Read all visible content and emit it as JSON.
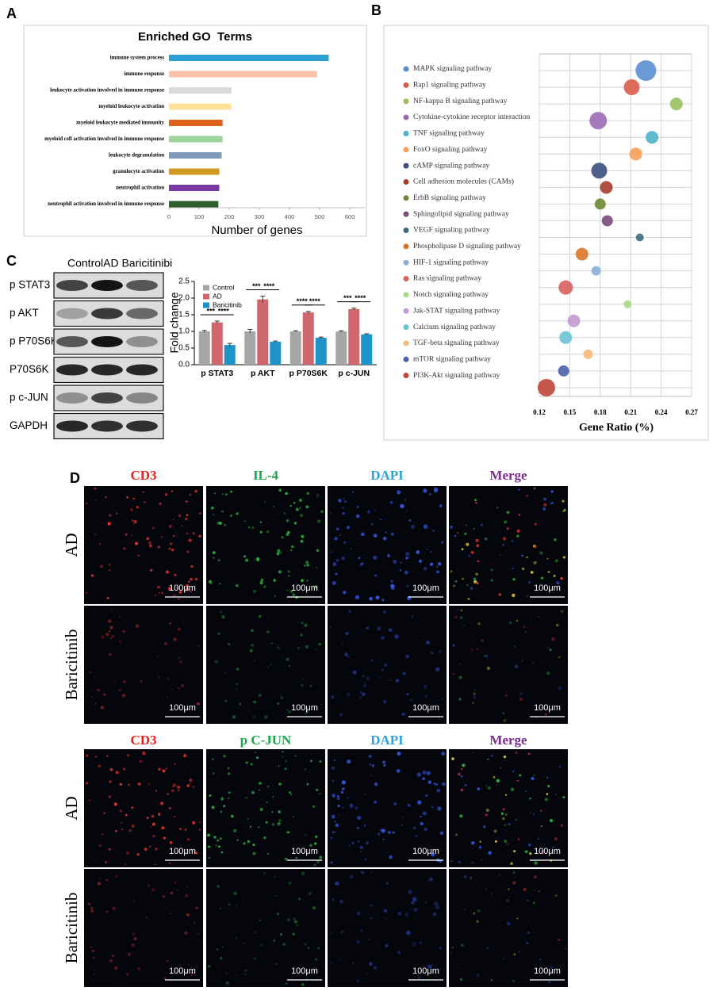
{
  "panel_labels": [
    "A",
    "B",
    "C",
    "D"
  ],
  "chart_data": [
    {
      "type": "hbar",
      "title": "Enriched GO  Terms",
      "x_label": "Number of genes",
      "categories": [
        "immune system process",
        "immune response",
        "leukocyte activation involved in immune response",
        "myeloid leukocyte activation",
        "myeloid leukocyte mediated immunity",
        "myeloid cell activation involved in immune response",
        "leukocyte degranulation",
        "granulocyte activation",
        "neutrophil activation",
        "neutrophil activation involved in immune response"
      ],
      "values": [
        530,
        491,
        207,
        207,
        178,
        178,
        175,
        167,
        167,
        164
      ],
      "colors": [
        "#2e9fd4",
        "#f9c3ab",
        "#d9d9d9",
        "#fde29a",
        "#e0611c",
        "#9dd49b",
        "#7f9bb9",
        "#d19a1f",
        "#7b39a5",
        "#2c5f2d"
      ],
      "xlim": [
        0,
        650
      ],
      "xticks": [
        0,
        100,
        200,
        300,
        400,
        500,
        600
      ]
    },
    {
      "type": "bubble",
      "x_label": "Gene Ratio (%)",
      "categories": [
        "MAPK signaling pathway",
        "Rap1 signaling pathway",
        "NF-kappa B signaling pathway",
        "Cytokine-cytokine receptor interaction",
        "TNF signaling pathway",
        "FoxO signaling pathway",
        "cAMP signaling pathway",
        "Cell adhesion molecules (CAMs)",
        "ErbB signaling pathway",
        "Sphingolipid signaling pathway",
        "VEGF signaling pathway",
        "Phospholipase D signaling pathway",
        "HIF-1 signaling pathway",
        "Ras signaling pathway",
        "Notch signaling pathway",
        "Jak-STAT signaling pathway",
        "Calcium signaling pathway",
        "TGF-beta signaling pathway",
        "mTOR signaling pathway",
        "PI3K-Akt signaling pathway"
      ],
      "values": [
        0.225,
        0.211,
        0.255,
        0.178,
        0.231,
        0.215,
        0.179,
        0.186,
        0.18,
        0.187,
        0.219,
        0.162,
        0.176,
        0.146,
        0.207,
        0.154,
        0.146,
        0.168,
        0.144,
        0.127
      ],
      "sizes": [
        13,
        10,
        8,
        11,
        8,
        8,
        10,
        8,
        7,
        7,
        5,
        8,
        6,
        9,
        5,
        8,
        8,
        6,
        7,
        11
      ],
      "colors": [
        "#5b8fd1",
        "#d95c4a",
        "#98c15e",
        "#9b6bb5",
        "#4eb3c9",
        "#f5a05a",
        "#3b4f7e",
        "#a63d2e",
        "#6b8a34",
        "#7a4a7a",
        "#3d6b7a",
        "#d9772b",
        "#8aaed9",
        "#d9605e",
        "#a9d98a",
        "#c39bd3",
        "#6cc3d5",
        "#f7b77a",
        "#4a5fa8",
        "#c0453a"
      ],
      "xlim": [
        0.12,
        0.27
      ],
      "xticks": [
        0.12,
        0.15,
        0.18,
        0.21,
        0.24,
        0.27
      ],
      "grid": true
    },
    {
      "type": "grouped_bar",
      "y_label": "Fold change",
      "categories": [
        "p STAT3",
        "p AKT",
        "p P70S6K",
        "p c-JUN"
      ],
      "series": [
        {
          "name": "Control",
          "color": "#a6a6a6",
          "values": [
            1.0,
            1.0,
            1.0,
            1.0
          ],
          "errors": [
            0.03,
            0.06,
            0.02,
            0.02
          ]
        },
        {
          "name": "AD",
          "color": "#d0676f",
          "values": [
            1.27,
            1.96,
            1.57,
            1.67
          ],
          "errors": [
            0.04,
            0.1,
            0.03,
            0.03
          ]
        },
        {
          "name": "Baricitinib",
          "color": "#1e93c7",
          "values": [
            0.59,
            0.69,
            0.81,
            0.91
          ],
          "errors": [
            0.05,
            0.02,
            0.02,
            0.02
          ]
        }
      ],
      "significance": [
        [
          "***",
          "****"
        ],
        [
          "***",
          "****"
        ],
        [
          "****",
          "****"
        ],
        [
          "***",
          "****"
        ]
      ],
      "ylim": [
        0,
        2.5
      ],
      "yticks": [
        {
          "value": 0,
          "label": "0.0"
        },
        0.5,
        {
          "value": 1,
          "label": "1.0"
        },
        1.5,
        {
          "value": 2,
          "label": "2.0"
        },
        2.5
      ],
      "legend": "upper left"
    }
  ],
  "blot": {
    "header": "ControlAD Baricitinibi",
    "rows": [
      "p STAT3",
      "p AKT",
      "p P70S6K",
      "P70S6K",
      "p c-JUN",
      "GAPDH"
    ]
  },
  "microscopy": {
    "scale_bar": "100μm",
    "panels": [
      {
        "columns": [
          "CD3",
          "IL-4",
          "DAPI",
          "Merge"
        ],
        "rows": [
          "AD",
          "Baricitinib"
        ]
      },
      {
        "columns": [
          "CD3",
          "p C-JUN",
          "DAPI",
          "Merge"
        ],
        "rows": [
          "AD",
          "Baricitinib"
        ]
      }
    ]
  }
}
